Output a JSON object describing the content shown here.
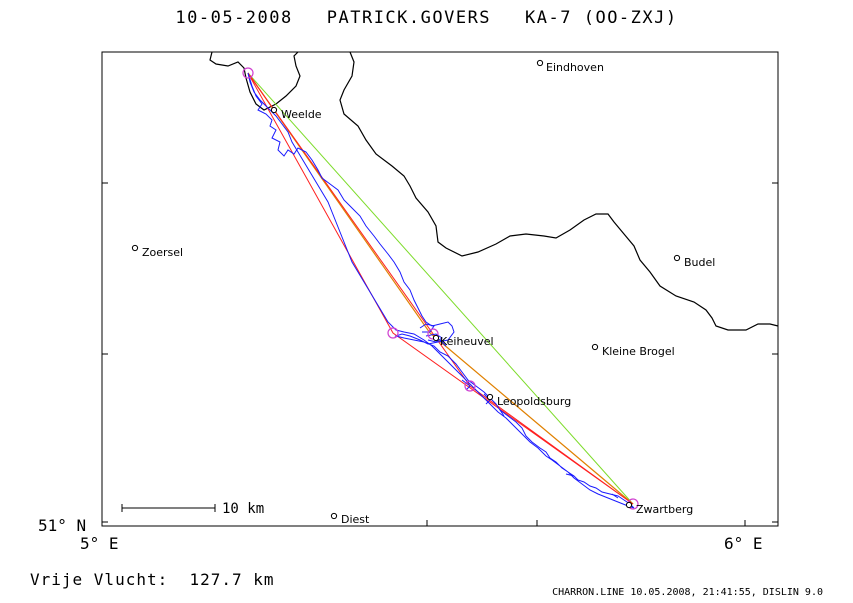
{
  "header": {
    "date": "10-05-2008",
    "pilot": "PATRICK.GOVERS",
    "glider": "KA-7 (OO-ZXJ)"
  },
  "axes": {
    "lat_label": "51° N",
    "lon_left": "5° E",
    "lon_right": "6° E"
  },
  "scale_bar": {
    "label": "10 km"
  },
  "places": [
    {
      "name": "Eindhoven"
    },
    {
      "name": "Weelde"
    },
    {
      "name": "Zoersel"
    },
    {
      "name": "Budel"
    },
    {
      "name": "Keiheuvel"
    },
    {
      "name": "Kleine Brogel"
    },
    {
      "name": "Leopoldsburg"
    },
    {
      "name": "Zwartberg"
    },
    {
      "name": "Diest"
    }
  ],
  "colors": {
    "track": "#1a1aff",
    "task_red": "#ff2020",
    "task_orange": "#e08000",
    "task_green": "#7ddc2a",
    "turnpoint": "#d040d0",
    "border": "#000000"
  },
  "footer": {
    "distance_label": "Vrije Vlucht:",
    "distance_value": "127.7 km",
    "software": "CHARRON.LINE 10.05.2008, 21:41:55, DISLIN 9.0"
  }
}
